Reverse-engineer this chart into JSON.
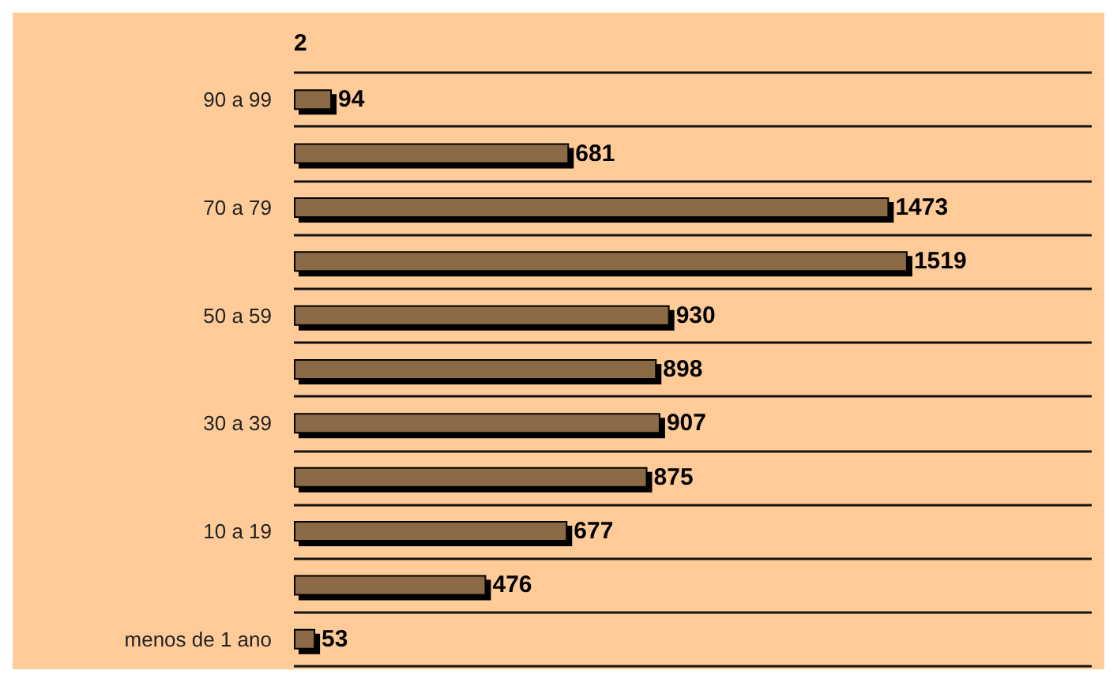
{
  "chart_data": {
    "type": "bar",
    "orientation": "horizontal",
    "categories": [
      "90 a 99",
      null,
      "70 a 79",
      null,
      "50 a 59",
      null,
      "30 a 39",
      null,
      "10 a 19",
      null,
      "menos de 1 ano"
    ],
    "values": [
      94,
      681,
      1473,
      1519,
      930,
      898,
      907,
      875,
      677,
      476,
      53
    ],
    "color": "#8b6a45",
    "data_labels": true,
    "grid": "y",
    "annotations": [
      "2"
    ]
  }
}
